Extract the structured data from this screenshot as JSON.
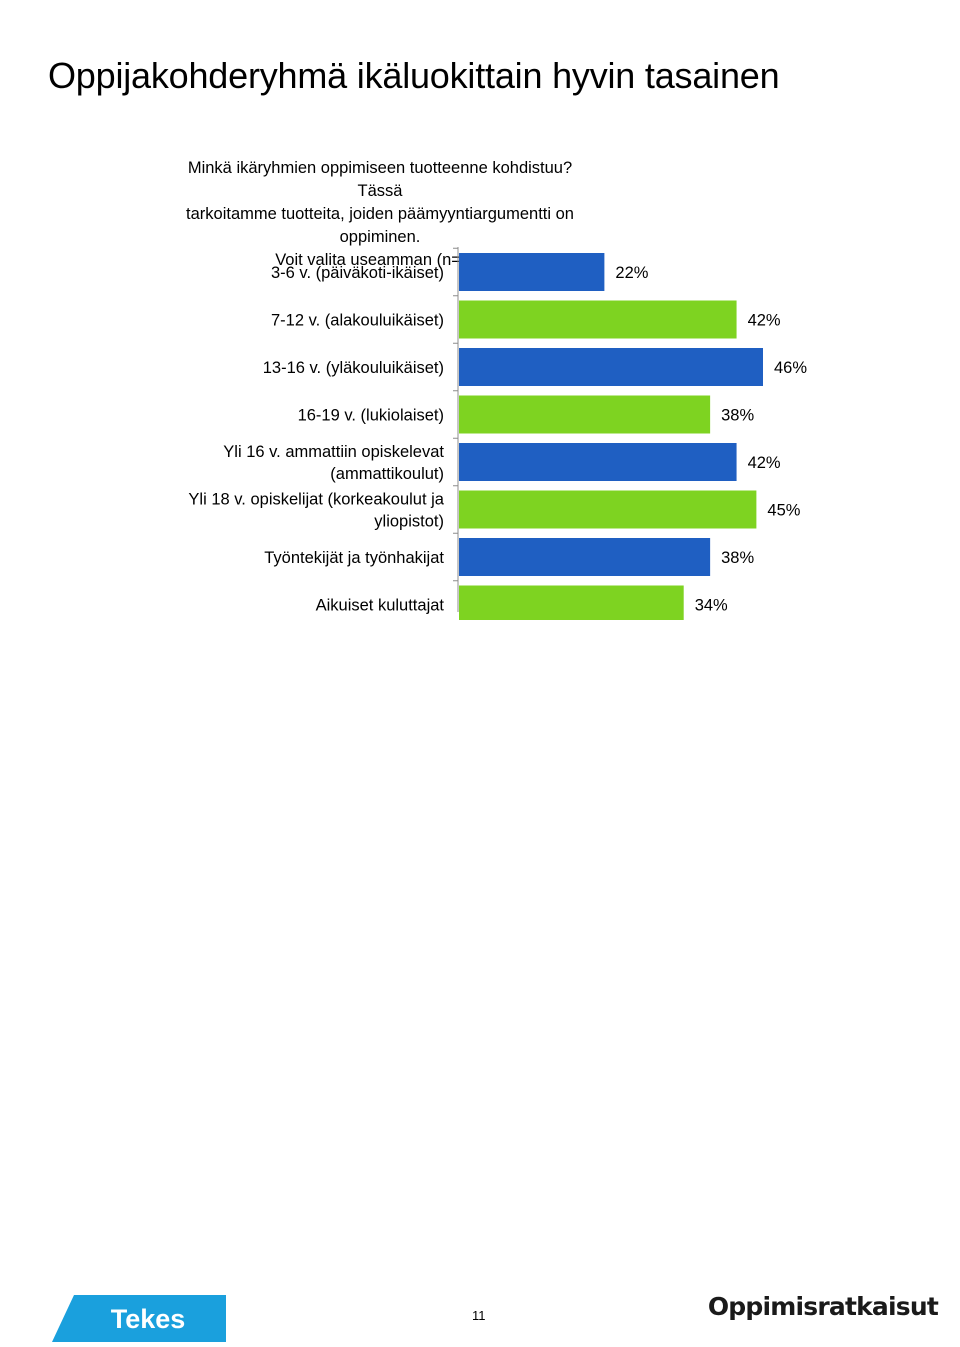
{
  "slide": {
    "title": "Oppijakohderyhmä ikäluokittain hyvin tasainen",
    "question_lines": [
      "Minkä ikäryhmien oppimiseen tuotteenne kohdistuu? Tässä",
      "tarkoitamme tuotteita, joiden päämyyntiargumentti on oppiminen.",
      "Voit valita useamman (n=92)"
    ]
  },
  "chart_data": {
    "type": "bar",
    "orientation": "horizontal",
    "categories": [
      [
        "3-6 v. (päiväkoti-ikäiset)"
      ],
      [
        "7-12 v. (alakouluikäiset)"
      ],
      [
        "13-16 v. (yläkouluikäiset)"
      ],
      [
        "16-19 v. (lukiolaiset)"
      ],
      [
        "Yli 16 v. ammattiin opiskelevat",
        "(ammattikoulut)"
      ],
      [
        "Yli 18 v. opiskelijat (korkeakoulut ja",
        "yliopistot)"
      ],
      [
        "Työntekijät ja työnhakijat"
      ],
      [
        "Aikuiset kuluttajat"
      ]
    ],
    "values": [
      22,
      42,
      46,
      38,
      42,
      45,
      38,
      34
    ],
    "value_labels": [
      "22%",
      "42%",
      "46%",
      "38%",
      "42%",
      "45%",
      "38%",
      "34%"
    ],
    "bar_colors": [
      "#1f5fc2",
      "#7ed321",
      "#1f5fc2",
      "#7ed321",
      "#1f5fc2",
      "#7ed321",
      "#1f5fc2",
      "#7ed321"
    ],
    "xlim": [
      0,
      46
    ],
    "grid": false,
    "legend": "none"
  },
  "footer": {
    "tekes_logo_text": "Tekes",
    "page_number": "11",
    "brand_logo_text": "Oppimisratkaisut",
    "tekes_color": "#1aa0dd"
  }
}
